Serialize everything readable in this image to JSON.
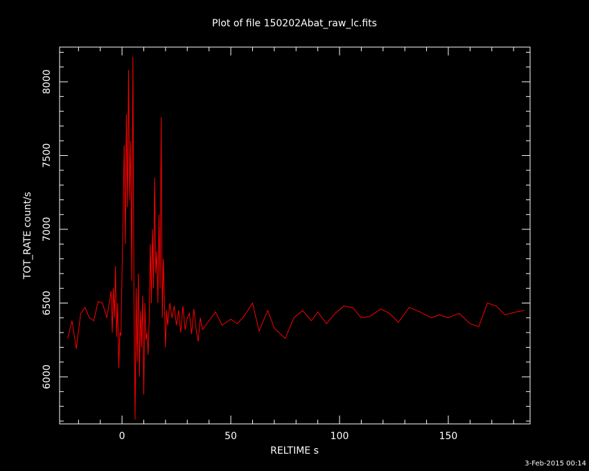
{
  "chart_data": {
    "type": "line",
    "title": "Plot of file 150202Abat_raw_lc.fits",
    "xlabel": "RELTIME  s",
    "ylabel": "TOT_RATE  count/s",
    "footer": "3-Feb-2015 00:14",
    "xlim": [
      -28.7,
      187.6
    ],
    "ylim": [
      5681,
      8235
    ],
    "xticks": [
      0,
      50,
      100,
      150
    ],
    "yticks": [
      6000,
      6500,
      7000,
      7500,
      8000
    ],
    "xticks_minor": [
      -20,
      -10,
      10,
      20,
      30,
      40,
      60,
      70,
      80,
      90,
      110,
      120,
      130,
      140,
      160,
      170,
      180
    ],
    "yticks_minor": [
      5700,
      5800,
      5900,
      6100,
      6200,
      6300,
      6400,
      6600,
      6700,
      6800,
      6900,
      7100,
      7200,
      7300,
      7400,
      7600,
      7700,
      7800,
      7900,
      8100,
      8200
    ],
    "series": [
      {
        "color": "#ff0000",
        "x": [
          -25,
          -23,
          -21,
          -19,
          -17,
          -15,
          -13,
          -11,
          -9,
          -7,
          -5,
          -4.5,
          -4,
          -3.5,
          -3,
          -2.5,
          -2,
          -1.5,
          -1,
          -0.5,
          0,
          0.5,
          1,
          1.5,
          2,
          2.5,
          3,
          3.5,
          4,
          4.5,
          5,
          5.5,
          6,
          6.5,
          7,
          7.5,
          8,
          8.5,
          9,
          9.5,
          10,
          10.5,
          11,
          11.5,
          12,
          12.5,
          13,
          13.5,
          14,
          14.5,
          15,
          15.5,
          16,
          16.5,
          17,
          17.5,
          18,
          18.5,
          19,
          19.5,
          20,
          20.5,
          21,
          22,
          23,
          24,
          25,
          26,
          27,
          28,
          29,
          30,
          31,
          32,
          33,
          34,
          35,
          36,
          37,
          38,
          40,
          43,
          46,
          50,
          53,
          56,
          60,
          63,
          67,
          70,
          75,
          79,
          83,
          87,
          90,
          94,
          98,
          102,
          106,
          110,
          114,
          119,
          123,
          127,
          132,
          137,
          142,
          146,
          150,
          155,
          160,
          164,
          168,
          172,
          176,
          181,
          185
        ],
        "values": [
          6260,
          6380,
          6190,
          6430,
          6470,
          6400,
          6380,
          6510,
          6500,
          6400,
          6580,
          6300,
          6600,
          6400,
          6750,
          6270,
          6500,
          6060,
          6300,
          6280,
          6700,
          7100,
          7570,
          6900,
          7780,
          7150,
          8080,
          7200,
          7600,
          6650,
          8170,
          6500,
          5710,
          6600,
          6100,
          6700,
          6000,
          6450,
          6200,
          6550,
          5880,
          6500,
          6250,
          6300,
          6150,
          6400,
          6900,
          6500,
          7000,
          6600,
          7350,
          6700,
          6850,
          6500,
          7100,
          6600,
          7760,
          6400,
          6800,
          6500,
          6200,
          6450,
          6350,
          6500,
          6400,
          6480,
          6350,
          6450,
          6300,
          6480,
          6320,
          6400,
          6430,
          6290,
          6460,
          6330,
          6240,
          6400,
          6320,
          6340,
          6380,
          6440,
          6350,
          6390,
          6360,
          6410,
          6500,
          6310,
          6450,
          6330,
          6260,
          6400,
          6450,
          6380,
          6440,
          6360,
          6430,
          6480,
          6470,
          6400,
          6410,
          6460,
          6430,
          6370,
          6470,
          6440,
          6400,
          6420,
          6400,
          6430,
          6360,
          6340,
          6500,
          6480,
          6420,
          6440,
          6450
        ]
      }
    ]
  }
}
